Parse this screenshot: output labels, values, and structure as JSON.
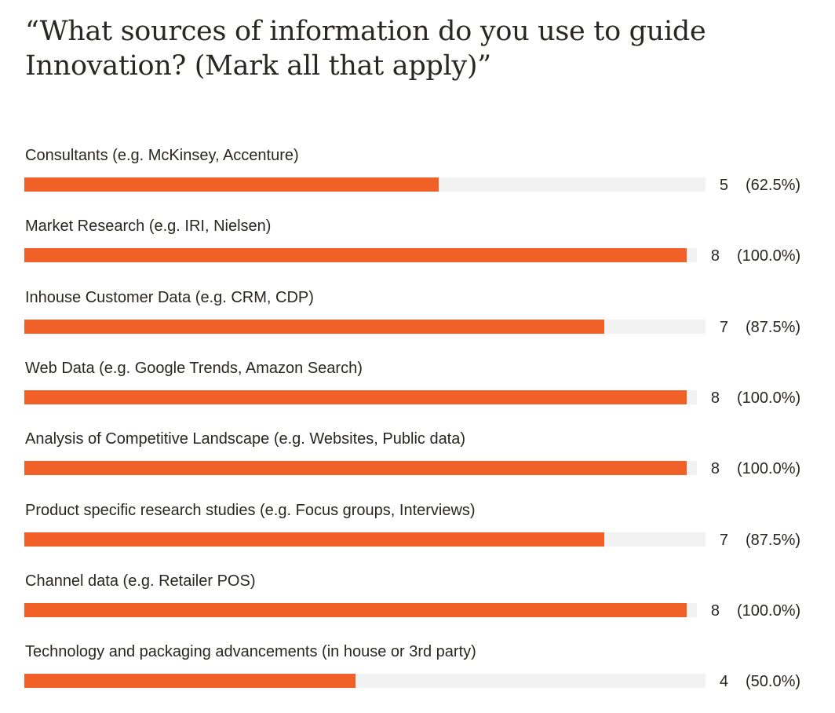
{
  "title": "“What sources of information do you use to guide Innovation? (Mark all that apply)”",
  "chart_data": {
    "type": "bar",
    "orientation": "horizontal",
    "title": "“What sources of information do you use to guide Innovation? (Mark all that apply)”",
    "max_count": 8,
    "bar_color": "#f06027",
    "track_color": "#f2f2f2",
    "categories": [
      "Consultants (e.g. McKinsey, Accenture)",
      "Market Research (e.g. IRI, Nielsen)",
      "Inhouse Customer Data (e.g. CRM, CDP)",
      "Web Data (e.g. Google Trends, Amazon Search)",
      "Analysis of Competitive Landscape (e.g. Websites, Public data)",
      "Product specific research studies (e.g. Focus groups, Interviews)",
      "Channel data (e.g. Retailer POS)",
      "Technology and packaging advancements (in house or 3rd party)"
    ],
    "values": [
      5,
      8,
      7,
      8,
      8,
      7,
      8,
      4
    ],
    "percent_labels": [
      "(62.5%)",
      "(100.0%)",
      "(87.5%)",
      "(100.0%)",
      "(100.0%)",
      "(87.5%)",
      "(100.0%)",
      "(50.0%)"
    ]
  }
}
